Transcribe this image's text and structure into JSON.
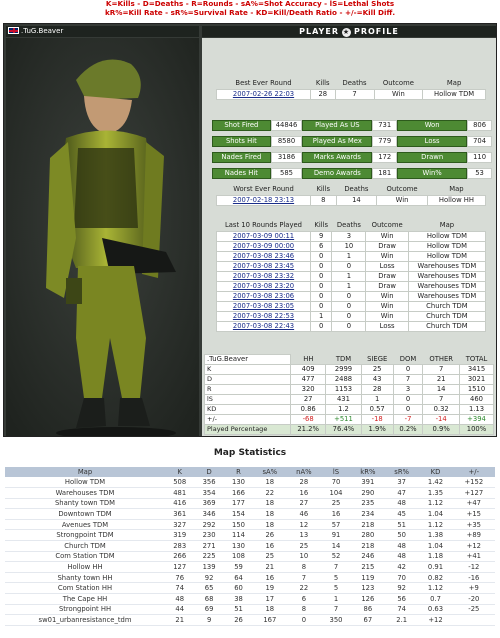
{
  "legend": {
    "line1": "K=Kills - D=Deaths - R=Rounds - sA%=Shot Accuracy - lS=Lethal Shots",
    "line2": "kR%=Kill Rate - sR%=Survival Rate - KD=Kill/Death Ratio - +/-=Kill Diff."
  },
  "player": {
    "name": ".TuG.Beaver",
    "header_left": "PLAYER",
    "header_right": "PROFILE"
  },
  "best_round": {
    "headers": [
      "Best Ever Round",
      "Kills",
      "Deaths",
      "Outcome",
      "Map"
    ],
    "row": [
      "2007-02-26 22:03",
      "28",
      "7",
      "Win",
      "Hollow TDM"
    ]
  },
  "stats": [
    {
      "label": "Shot Fired",
      "value": "44846",
      "label2": "Played As US",
      "value2": "731",
      "label3": "Won",
      "value3": "806"
    },
    {
      "label": "Shots Hit",
      "value": "8580",
      "label2": "Played As Mex",
      "value2": "779",
      "label3": "Loss",
      "value3": "704"
    },
    {
      "label": "Nades Fired",
      "value": "3186",
      "label2": "Marks Awards",
      "value2": "172",
      "label3": "Drawn",
      "value3": "110"
    },
    {
      "label": "Nades Hit",
      "value": "585",
      "label2": "Demo Awards",
      "value2": "181",
      "label3": "Win%",
      "value3": "53"
    }
  ],
  "worst_round": {
    "headers": [
      "Worst Ever Round",
      "Kills",
      "Deaths",
      "Outcome",
      "Map"
    ],
    "row": [
      "2007-02-18 23:13",
      "8",
      "14",
      "Win",
      "Hollow HH"
    ]
  },
  "last10": {
    "headers": [
      "Last 10 Rounds Played",
      "Kills",
      "Deaths",
      "Outcome",
      "Map"
    ],
    "rows": [
      [
        "2007-03-09 00:11",
        "9",
        "3",
        "Win",
        "Hollow TDM"
      ],
      [
        "2007-03-09 00:00",
        "6",
        "10",
        "Draw",
        "Hollow TDM"
      ],
      [
        "2007-03-08 23:46",
        "0",
        "1",
        "Win",
        "Hollow TDM"
      ],
      [
        "2007-03-08 23:45",
        "0",
        "0",
        "Loss",
        "Warehouses TDM"
      ],
      [
        "2007-03-08 23:32",
        "0",
        "1",
        "Draw",
        "Warehouses TDM"
      ],
      [
        "2007-03-08 23:20",
        "0",
        "1",
        "Draw",
        "Warehouses TDM"
      ],
      [
        "2007-03-08 23:06",
        "0",
        "0",
        "Win",
        "Warehouses TDM"
      ],
      [
        "2007-03-08 23:05",
        "0",
        "0",
        "Win",
        "Church TDM"
      ],
      [
        "2007-03-08 22:53",
        "1",
        "0",
        "Win",
        "Church TDM"
      ],
      [
        "2007-03-08 22:43",
        "0",
        "0",
        "Loss",
        "Church TDM"
      ]
    ]
  },
  "summary": {
    "headers": [
      ".TuG.Beaver",
      "HH",
      "TDM",
      "SIEGE",
      "DOM",
      "OTHER",
      "TOTAL"
    ],
    "rows": [
      [
        "K",
        "409",
        "2999",
        "25",
        "0",
        "7",
        "3415"
      ],
      [
        "D",
        "477",
        "2488",
        "43",
        "7",
        "21",
        "3021"
      ],
      [
        "R",
        "320",
        "1153",
        "28",
        "3",
        "14",
        "1510"
      ],
      [
        "lS",
        "27",
        "431",
        "1",
        "0",
        "7",
        "460"
      ],
      [
        "KD",
        "0.86",
        "1.2",
        "0.57",
        "0",
        "0.32",
        "1.13"
      ],
      [
        "+/-",
        "-68",
        "+511",
        "-18",
        "-7",
        "-14",
        "+394"
      ],
      [
        "Played Percentage",
        "21.2%",
        "76.4%",
        "1.9%",
        "0.2%",
        "0.9%",
        "100%"
      ]
    ]
  },
  "map_stats": {
    "title": "Map Statistics",
    "headers": [
      "Map",
      "K",
      "D",
      "R",
      "sA%",
      "nA%",
      "lS",
      "kR%",
      "sR%",
      "KD",
      "+/-"
    ],
    "rows": [
      [
        "Hollow TDM",
        "508",
        "356",
        "130",
        "18",
        "28",
        "70",
        "391",
        "37",
        "1.42",
        "+152"
      ],
      [
        "Warehouses TDM",
        "481",
        "354",
        "166",
        "22",
        "16",
        "104",
        "290",
        "47",
        "1.35",
        "+127"
      ],
      [
        "Shanty town TDM",
        "416",
        "369",
        "177",
        "18",
        "27",
        "25",
        "235",
        "48",
        "1.12",
        "+47"
      ],
      [
        "Downtown TDM",
        "361",
        "346",
        "154",
        "18",
        "46",
        "16",
        "234",
        "45",
        "1.04",
        "+15"
      ],
      [
        "Avenues TDM",
        "327",
        "292",
        "150",
        "18",
        "12",
        "57",
        "218",
        "51",
        "1.12",
        "+35"
      ],
      [
        "Strongpoint TDM",
        "319",
        "230",
        "114",
        "26",
        "13",
        "91",
        "280",
        "50",
        "1.38",
        "+89"
      ],
      [
        "Church TDM",
        "283",
        "271",
        "130",
        "16",
        "25",
        "14",
        "218",
        "48",
        "1.04",
        "+12"
      ],
      [
        "Com Station TDM",
        "266",
        "225",
        "108",
        "25",
        "10",
        "52",
        "246",
        "48",
        "1.18",
        "+41"
      ],
      [
        "Hollow HH",
        "127",
        "139",
        "59",
        "21",
        "8",
        "7",
        "215",
        "42",
        "0.91",
        "-12"
      ],
      [
        "Shanty town HH",
        "76",
        "92",
        "64",
        "16",
        "7",
        "5",
        "119",
        "70",
        "0.82",
        "-16"
      ],
      [
        "Com Station HH",
        "74",
        "65",
        "60",
        "19",
        "22",
        "5",
        "123",
        "92",
        "1.12",
        "+9"
      ],
      [
        "The Cape HH",
        "48",
        "68",
        "38",
        "17",
        "6",
        "1",
        "126",
        "56",
        "0.7",
        "-20"
      ],
      [
        "Strongpoint HH",
        "44",
        "69",
        "51",
        "18",
        "8",
        "7",
        "86",
        "74",
        "0.63",
        "-25"
      ],
      [
        "sw01_urbanresistance_tdm",
        "21",
        "9",
        "26",
        "167",
        "0",
        "350",
        "67",
        "2.1",
        "+12",
        ""
      ]
    ]
  }
}
